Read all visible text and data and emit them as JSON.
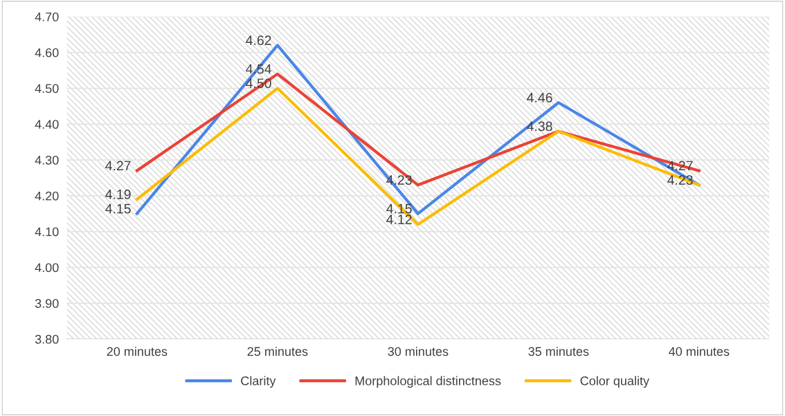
{
  "chart_data": {
    "type": "line",
    "categories": [
      "20 minutes",
      "25 minutes",
      "30 minutes",
      "35 minutes",
      "40 minutes"
    ],
    "series": [
      {
        "name": "Clarity",
        "color": "#4a86e8",
        "values": [
          4.15,
          4.62,
          4.15,
          4.46,
          4.23
        ],
        "value_labels": [
          "4.15",
          "4.62",
          "4.15",
          "4.46",
          "4.23"
        ]
      },
      {
        "name": "Morphological distinctness",
        "color": "#ea4335",
        "values": [
          4.27,
          4.54,
          4.23,
          4.38,
          4.27
        ],
        "value_labels": [
          "4.27",
          "4.54",
          "4.23",
          "4.38",
          "4.27"
        ]
      },
      {
        "name": "Color quality",
        "color": "#fbbc04",
        "values": [
          4.19,
          4.5,
          4.12,
          4.38,
          4.23
        ],
        "value_labels": [
          "4.19",
          "4.50",
          "4.12",
          null,
          null
        ]
      }
    ],
    "ylim": [
      3.8,
      4.7
    ],
    "yticks": [
      {
        "value": 3.8,
        "label": "3.80"
      },
      {
        "value": 3.9,
        "label": "3.90"
      },
      {
        "value": 4.0,
        "label": "4.00"
      },
      {
        "value": 4.1,
        "label": "4.10"
      },
      {
        "value": 4.2,
        "label": "4.20"
      },
      {
        "value": 4.3,
        "label": "4.30"
      },
      {
        "value": 4.4,
        "label": "4.40"
      },
      {
        "value": 4.5,
        "label": "4.50"
      },
      {
        "value": 4.6,
        "label": "4.60"
      },
      {
        "value": 4.7,
        "label": "4.70"
      }
    ],
    "grid": "y",
    "legend": "bottom",
    "marker": "none",
    "line_style": "solid"
  }
}
